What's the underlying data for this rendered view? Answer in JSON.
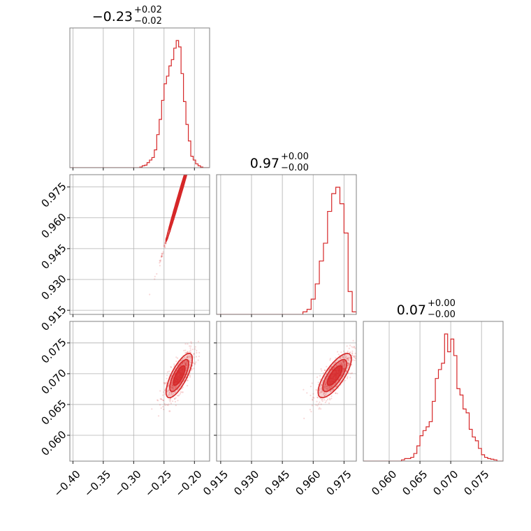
{
  "chart_data": {
    "type": "corner",
    "color": "#d62728",
    "grid": true,
    "parameters": [
      {
        "key": "p0",
        "range": [
          -0.405,
          -0.175
        ],
        "ticks": [
          -0.4,
          -0.35,
          -0.3,
          -0.25,
          -0.2
        ],
        "tick_labels": [
          "−0.40",
          "−0.35",
          "−0.30",
          "−0.25",
          "−0.20"
        ],
        "title_value": "−0.23",
        "title_plus": "+0.02",
        "title_minus": "−0.02"
      },
      {
        "key": "p1",
        "range": [
          0.913,
          0.981
        ],
        "ticks": [
          0.915,
          0.93,
          0.945,
          0.96,
          0.975
        ],
        "tick_labels": [
          "0.915",
          "0.930",
          "0.945",
          "0.960",
          "0.975"
        ],
        "title_value": "0.97",
        "title_plus": "+0.00",
        "title_minus": "−0.00"
      },
      {
        "key": "p2",
        "range": [
          0.0558,
          0.0785
        ],
        "ticks": [
          0.06,
          0.065,
          0.07,
          0.075
        ],
        "tick_labels": [
          "0.060",
          "0.065",
          "0.070",
          "0.075"
        ],
        "title_value": "0.07",
        "title_plus": "+0.00",
        "title_minus": "−0.00"
      }
    ],
    "histograms": [
      {
        "param": "p0",
        "bin_width": 0.004,
        "x": [
          -0.29,
          -0.286,
          -0.282,
          -0.278,
          -0.274,
          -0.27,
          -0.266,
          -0.262,
          -0.258,
          -0.254,
          -0.25,
          -0.246,
          -0.242,
          -0.238,
          -0.234,
          -0.23,
          -0.226,
          -0.222,
          -0.218,
          -0.214,
          -0.21,
          -0.206,
          -0.202,
          -0.198,
          -0.194,
          -0.19,
          -0.186,
          -0.182
        ],
        "y": [
          0.005,
          0.015,
          0.02,
          0.04,
          0.06,
          0.08,
          0.14,
          0.26,
          0.38,
          0.53,
          0.66,
          0.72,
          0.8,
          0.85,
          0.94,
          1.0,
          0.95,
          0.74,
          0.52,
          0.34,
          0.21,
          0.09,
          0.06,
          0.03,
          0.015,
          0.005,
          0.0,
          0.0
        ]
      },
      {
        "param": "p1",
        "bin_width": 0.002,
        "x": [
          0.955,
          0.957,
          0.959,
          0.961,
          0.963,
          0.965,
          0.967,
          0.969,
          0.971,
          0.973,
          0.975,
          0.977,
          0.979
        ],
        "y": [
          0.02,
          0.04,
          0.12,
          0.24,
          0.42,
          0.56,
          0.81,
          0.95,
          1.0,
          0.87,
          0.64,
          0.18,
          0.02
        ]
      },
      {
        "param": "p2",
        "bin_width": 0.0005,
        "x": [
          0.0615,
          0.062,
          0.0625,
          0.063,
          0.0635,
          0.064,
          0.0645,
          0.065,
          0.0655,
          0.066,
          0.0665,
          0.067,
          0.0675,
          0.068,
          0.0685,
          0.069,
          0.0695,
          0.07,
          0.0705,
          0.071,
          0.0715,
          0.072,
          0.0725,
          0.073,
          0.0735,
          0.074,
          0.0745,
          0.075,
          0.0755,
          0.076,
          0.0765,
          0.077,
          0.0775
        ],
        "y": [
          0.0,
          0.01,
          0.02,
          0.02,
          0.03,
          0.06,
          0.12,
          0.2,
          0.24,
          0.27,
          0.31,
          0.47,
          0.65,
          0.72,
          0.77,
          1.0,
          0.86,
          0.96,
          0.83,
          0.57,
          0.52,
          0.41,
          0.38,
          0.25,
          0.19,
          0.16,
          0.1,
          0.05,
          0.03,
          0.02,
          0.015,
          0.01,
          0.0
        ]
      }
    ],
    "scatter_panels": [
      {
        "x_param": "p0",
        "y_param": "p1",
        "center": [
          -0.225,
          0.9705
        ],
        "x_sigma": 0.01,
        "slope": 1.0,
        "y_scatter": 0.0008,
        "x_clip": [
          -0.29,
          -0.18
        ],
        "contour_sigmas": [
          1.0,
          1.6,
          2.2
        ]
      },
      {
        "x_param": "p0",
        "y_param": "p2",
        "center": [
          -0.225,
          0.0697
        ],
        "sigma": [
          0.012,
          0.002
        ],
        "corr": 0.75,
        "contour_sigmas": [
          0.8,
          1.3,
          1.8
        ]
      },
      {
        "x_param": "p1",
        "y_param": "p2",
        "center": [
          0.9705,
          0.0697
        ],
        "sigma": [
          0.0045,
          0.002
        ],
        "corr": 0.75,
        "contour_sigmas": [
          0.8,
          1.3,
          1.8
        ]
      }
    ]
  }
}
